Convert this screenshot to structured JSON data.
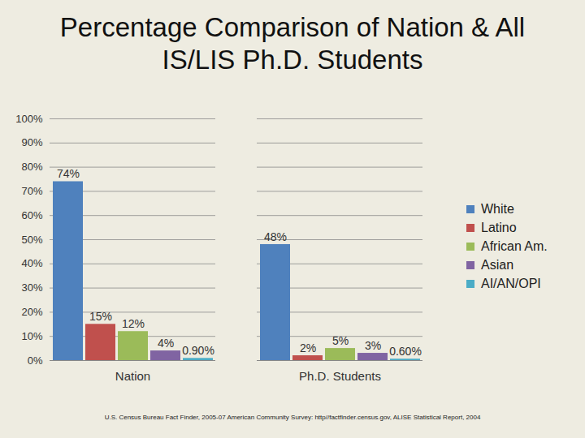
{
  "chart_data": {
    "type": "bar",
    "title": "Percentage Comparison of Nation & All IS/LIS Ph.D. Students",
    "caption": "U.S. Census Bureau Fact Finder, 2005-07 American Community Survey: http//factfinder.census.gov, ALISE Statistical Report, 2004",
    "categories": [
      "Nation",
      "Ph.D. Students"
    ],
    "series": [
      {
        "name": "White",
        "color": "#4F81BD",
        "values": [
          74,
          48
        ],
        "value_labels": [
          "74%",
          "48%"
        ]
      },
      {
        "name": "Latino",
        "color": "#C0504D",
        "values": [
          15,
          2
        ],
        "value_labels": [
          "15%",
          "2%"
        ]
      },
      {
        "name": "African Am.",
        "color": "#9BBB59",
        "values": [
          12,
          5
        ],
        "value_labels": [
          "12%",
          "5%"
        ]
      },
      {
        "name": "Asian",
        "color": "#8064A2",
        "values": [
          4,
          3
        ],
        "value_labels": [
          "4%",
          "3%"
        ]
      },
      {
        "name": "AI/AN/OPI",
        "color": "#4BACC6",
        "values": [
          0.9,
          0.6
        ],
        "value_labels": [
          "0.90%",
          "0.60%"
        ]
      }
    ],
    "ylim": [
      0,
      100
    ],
    "yticks": [
      {
        "value": 0,
        "label": "0%"
      },
      {
        "value": 10,
        "label": "10%"
      },
      {
        "value": 20,
        "label": "20%"
      },
      {
        "value": 30,
        "label": "30%"
      },
      {
        "value": 40,
        "label": "40%"
      },
      {
        "value": 50,
        "label": "50%"
      },
      {
        "value": 60,
        "label": "60%"
      },
      {
        "value": 70,
        "label": "70%"
      },
      {
        "value": 80,
        "label": "80%"
      },
      {
        "value": 90,
        "label": "90%"
      },
      {
        "value": 100,
        "label": "100%"
      }
    ],
    "grid": true,
    "legend": "right",
    "data_labels": true
  }
}
